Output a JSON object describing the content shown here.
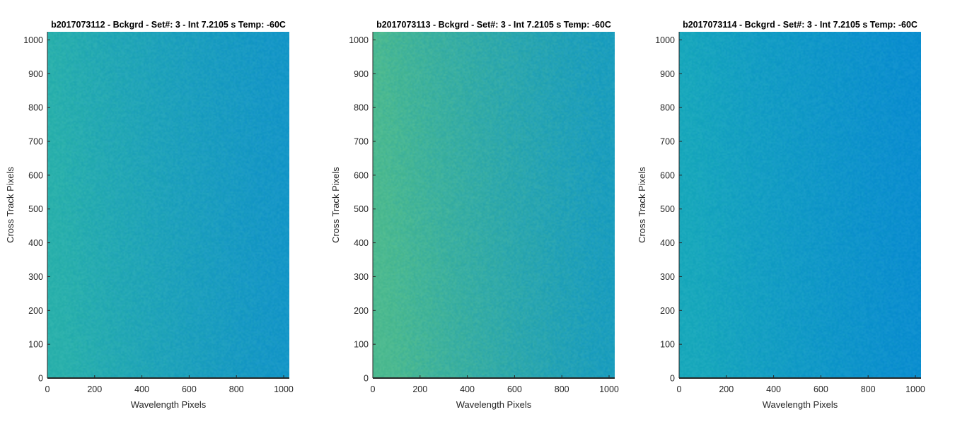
{
  "figure": {
    "background": "#ffffff",
    "axis_color": "#262626"
  },
  "chart_data": [
    {
      "type": "heatmap",
      "title": "b2017073112 - Bckgrd - Set#: 3 - Int 7.2105 s Temp: -60C",
      "xlabel": "Wavelength Pixels",
      "ylabel": "Cross Track Pixels",
      "xlim": [
        0,
        1024
      ],
      "ylim": [
        0,
        1024
      ],
      "xticks": [
        0,
        200,
        400,
        600,
        800,
        1000
      ],
      "yticks": [
        0,
        100,
        200,
        300,
        400,
        500,
        600,
        700,
        800,
        900,
        1000
      ],
      "grid": false,
      "colormap": "parula",
      "color_left": "#2bb1ac",
      "color_right": "#1596c8",
      "noise": "fine pixel noise, brighter toward low wavelength pixels"
    },
    {
      "type": "heatmap",
      "title": "b2017073113 - Bckgrd - Set#: 3 - Int 7.2105 s Temp: -60C",
      "xlabel": "Wavelength Pixels",
      "ylabel": "Cross Track Pixels",
      "xlim": [
        0,
        1024
      ],
      "ylim": [
        0,
        1024
      ],
      "xticks": [
        0,
        200,
        400,
        600,
        800,
        1000
      ],
      "yticks": [
        0,
        100,
        200,
        300,
        400,
        500,
        600,
        700,
        800,
        900,
        1000
      ],
      "grid": false,
      "colormap": "parula",
      "color_left": "#4dba90",
      "color_right": "#1a9dbf",
      "noise": "fine pixel noise, brighter toward low wavelength pixels"
    },
    {
      "type": "heatmap",
      "title": "b2017073114 - Bckgrd - Set#: 3 - Int 7.2105 s Temp: -60C",
      "xlabel": "Wavelength Pixels",
      "ylabel": "Cross Track Pixels",
      "xlim": [
        0,
        1024
      ],
      "ylim": [
        0,
        1024
      ],
      "xticks": [
        0,
        200,
        400,
        600,
        800,
        1000
      ],
      "yticks": [
        0,
        100,
        200,
        300,
        400,
        500,
        600,
        700,
        800,
        900,
        1000
      ],
      "grid": false,
      "colormap": "parula",
      "color_left": "#1aa9bc",
      "color_right": "#0c8ed0",
      "noise": "fine pixel noise, slightly brighter toward low wavelength pixels"
    }
  ]
}
